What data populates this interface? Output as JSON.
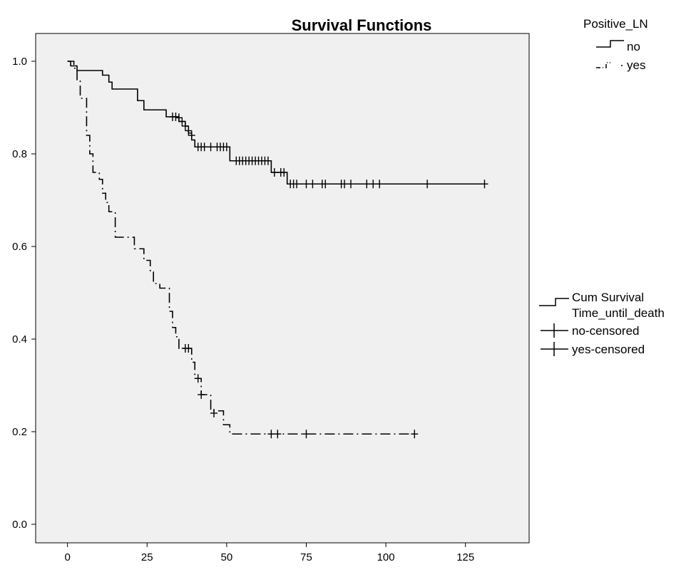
{
  "chart_data": {
    "type": "line",
    "title": "Survival Functions",
    "xlabel": "",
    "ylabel": "",
    "xlim": [
      -10,
      145
    ],
    "ylim": [
      -0.04,
      1.06
    ],
    "x_ticks": [
      0,
      25,
      50,
      75,
      100,
      125
    ],
    "y_ticks": [
      0.0,
      0.2,
      0.4,
      0.6,
      0.8,
      1.0
    ],
    "x_tick_labels": [
      "0",
      "25",
      "50",
      "75",
      "100",
      "125"
    ],
    "y_tick_labels": [
      "0.0",
      "0.2",
      "0.4",
      "0.6",
      "0.8",
      "1.0"
    ],
    "grid": false,
    "plot_background": "#f0f0f0",
    "legend_position": "top-right",
    "legend_title": "Positive_LN",
    "series": [
      {
        "name": "no",
        "line_style": "solid",
        "steps": [
          [
            0,
            1.0
          ],
          [
            1,
            0.99
          ],
          [
            3,
            0.98
          ],
          [
            11,
            0.97
          ],
          [
            13,
            0.955
          ],
          [
            14,
            0.94
          ],
          [
            22,
            0.915
          ],
          [
            24,
            0.895
          ],
          [
            31,
            0.88
          ],
          [
            35,
            0.87
          ],
          [
            37,
            0.86
          ],
          [
            38,
            0.845
          ],
          [
            39,
            0.83
          ],
          [
            40,
            0.815
          ],
          [
            51,
            0.785
          ],
          [
            64,
            0.76
          ],
          [
            69,
            0.735
          ],
          [
            131,
            0.735
          ]
        ],
        "censored": [
          [
            33,
            0.88
          ],
          [
            34,
            0.88
          ],
          [
            35,
            0.878
          ],
          [
            36,
            0.87
          ],
          [
            37,
            0.86
          ],
          [
            38,
            0.85
          ],
          [
            39,
            0.84
          ],
          [
            41,
            0.815
          ],
          [
            42,
            0.815
          ],
          [
            43,
            0.815
          ],
          [
            45,
            0.815
          ],
          [
            47,
            0.815
          ],
          [
            48,
            0.815
          ],
          [
            49,
            0.815
          ],
          [
            50,
            0.815
          ],
          [
            53,
            0.785
          ],
          [
            54,
            0.785
          ],
          [
            55,
            0.785
          ],
          [
            56,
            0.785
          ],
          [
            57,
            0.785
          ],
          [
            58,
            0.785
          ],
          [
            59,
            0.785
          ],
          [
            60,
            0.785
          ],
          [
            61,
            0.785
          ],
          [
            62,
            0.785
          ],
          [
            63,
            0.785
          ],
          [
            65,
            0.76
          ],
          [
            67,
            0.76
          ],
          [
            68,
            0.76
          ],
          [
            70,
            0.735
          ],
          [
            71,
            0.735
          ],
          [
            72,
            0.735
          ],
          [
            75,
            0.735
          ],
          [
            77,
            0.735
          ],
          [
            80,
            0.735
          ],
          [
            81,
            0.735
          ],
          [
            86,
            0.735
          ],
          [
            87,
            0.735
          ],
          [
            89,
            0.735
          ],
          [
            94,
            0.735
          ],
          [
            96,
            0.735
          ],
          [
            98,
            0.735
          ],
          [
            113,
            0.735
          ],
          [
            131,
            0.735
          ]
        ]
      },
      {
        "name": "yes",
        "line_style": "dash-dot",
        "steps": [
          [
            0,
            1.0
          ],
          [
            2,
            0.985
          ],
          [
            3,
            0.96
          ],
          [
            4,
            0.92
          ],
          [
            6,
            0.84
          ],
          [
            7,
            0.8
          ],
          [
            8,
            0.76
          ],
          [
            10,
            0.745
          ],
          [
            11,
            0.715
          ],
          [
            12,
            0.695
          ],
          [
            13,
            0.675
          ],
          [
            15,
            0.62
          ],
          [
            21,
            0.595
          ],
          [
            24,
            0.57
          ],
          [
            26,
            0.545
          ],
          [
            27,
            0.52
          ],
          [
            29,
            0.51
          ],
          [
            32,
            0.46
          ],
          [
            33,
            0.425
          ],
          [
            34,
            0.405
          ],
          [
            35,
            0.38
          ],
          [
            39,
            0.35
          ],
          [
            40,
            0.315
          ],
          [
            42,
            0.28
          ],
          [
            45,
            0.245
          ],
          [
            49,
            0.215
          ],
          [
            51,
            0.195
          ],
          [
            109,
            0.195
          ]
        ],
        "censored": [
          [
            37,
            0.38
          ],
          [
            38,
            0.38
          ],
          [
            41,
            0.315
          ],
          [
            42,
            0.28
          ],
          [
            46,
            0.24
          ],
          [
            64,
            0.195
          ],
          [
            66,
            0.195
          ],
          [
            75,
            0.195
          ],
          [
            109,
            0.195
          ]
        ]
      }
    ],
    "secondary_legend": {
      "title_line1": "Cum Survival",
      "title_line2": "Time_until_death",
      "items": [
        "no-censored",
        "yes-censored"
      ]
    }
  }
}
